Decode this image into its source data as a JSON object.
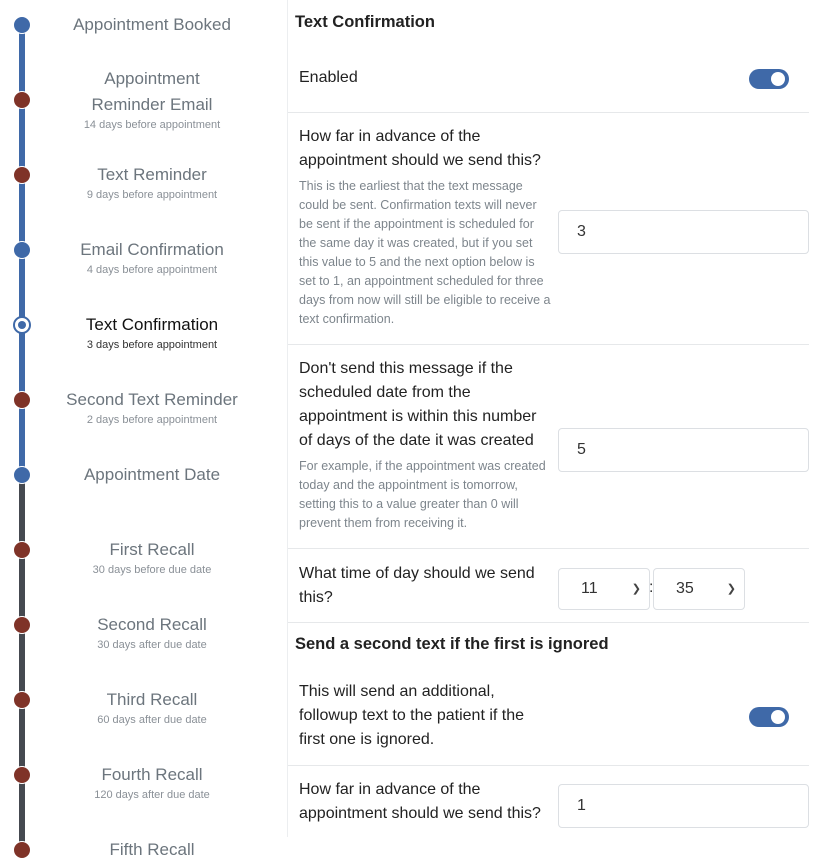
{
  "colors": {
    "blue": "#3f69a8",
    "red": "#7f3328",
    "dark_line": "#454950"
  },
  "timeline": [
    {
      "title": "Appointment Booked",
      "sub": "",
      "dot": "blue"
    },
    {
      "title": "Appointment Reminder Email",
      "sub": "14 days before appointment",
      "dot": "red"
    },
    {
      "title": "Text Reminder",
      "sub": "9 days before appointment",
      "dot": "red"
    },
    {
      "title": "Email Confirmation",
      "sub": "4 days before appointment",
      "dot": "blue"
    },
    {
      "title": "Text Confirmation",
      "sub": "3 days before appointment",
      "dot": "current"
    },
    {
      "title": "Second Text Reminder",
      "sub": "2 days before appointment",
      "dot": "red"
    },
    {
      "title": "Appointment Date",
      "sub": "",
      "dot": "blue"
    },
    {
      "title": "First Recall",
      "sub": "30 days before due date",
      "dot": "red"
    },
    {
      "title": "Second Recall",
      "sub": "30 days after due date",
      "dot": "red"
    },
    {
      "title": "Third Recall",
      "sub": "60 days after due date",
      "dot": "red"
    },
    {
      "title": "Fourth Recall",
      "sub": "120 days after due date",
      "dot": "red"
    },
    {
      "title": "Fifth Recall",
      "sub": "",
      "dot": "red"
    }
  ],
  "panel": {
    "title": "Text Confirmation",
    "enabled_label": "Enabled",
    "enabled": true,
    "advance_label": "How far in advance of the appointment should we send this?",
    "advance_help": "This is the earliest that the text message could be sent. Confirmation texts will never be sent if the appointment is scheduled for the same day it was created, but if you set this value to 5 and the next option below is set to 1, an appointment scheduled for three days from now will still be eligible to receive a text confirmation.",
    "advance_value": "3",
    "dont_send_label": "Don't send this message if the scheduled date from the appointment is within this number of days of the date it was created",
    "dont_send_help": "For example, if the appointment was created today and the appointment is tomorrow, setting this to a value greater than 0 will prevent them from receiving it.",
    "dont_send_value": "5",
    "time_label": "What time of day should we send this?",
    "hour": "11",
    "minute": "35",
    "colon": ":",
    "second_title": "Send a second text if the first is ignored",
    "second_label": "This will send an additional, followup text to the patient if the first one is ignored.",
    "second_enabled": true,
    "second_advance_label": "How far in advance of the appointment should we send this?",
    "second_advance_value": "1"
  }
}
